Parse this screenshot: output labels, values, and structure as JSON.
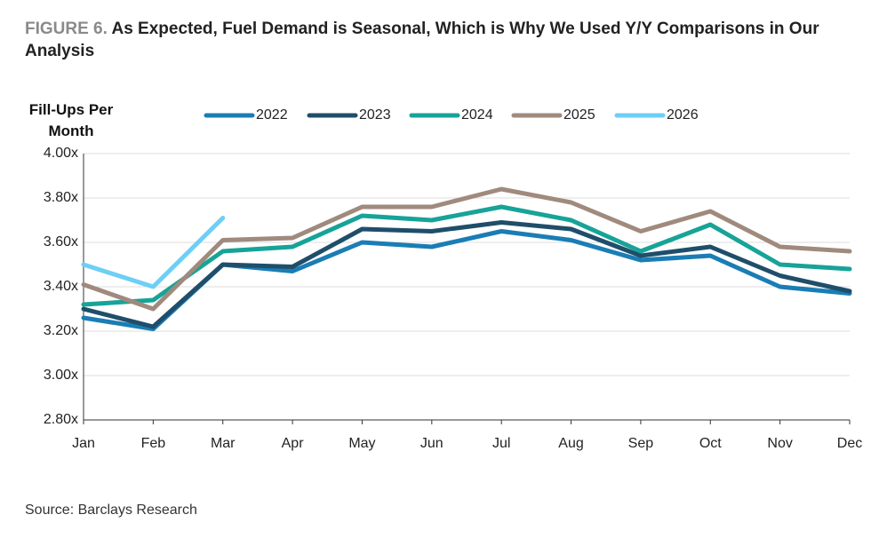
{
  "chart_data": {
    "type": "line",
    "figure_label": "FIGURE 6.",
    "title": "As Expected, Fuel Demand is Seasonal, Which is Why We Used Y/Y Comparisons in Our Analysis",
    "y_label": "Fill-Ups Per Month",
    "source": "Source: Barclays Research",
    "categories": [
      "Jan",
      "Feb",
      "Mar",
      "Apr",
      "May",
      "Jun",
      "Jul",
      "Aug",
      "Sep",
      "Oct",
      "Nov",
      "Dec"
    ],
    "series": [
      {
        "name": "2022",
        "color": "#1a7db5",
        "values": [
          3.26,
          3.21,
          3.5,
          3.47,
          3.6,
          3.58,
          3.65,
          3.61,
          3.52,
          3.54,
          3.4,
          3.37
        ]
      },
      {
        "name": "2023",
        "color": "#1f4e6b",
        "values": [
          3.3,
          3.22,
          3.5,
          3.49,
          3.66,
          3.65,
          3.69,
          3.66,
          3.54,
          3.58,
          3.45,
          3.38
        ]
      },
      {
        "name": "2024",
        "color": "#17a398",
        "values": [
          3.32,
          3.34,
          3.56,
          3.58,
          3.72,
          3.7,
          3.76,
          3.7,
          3.56,
          3.68,
          3.5,
          3.48
        ]
      },
      {
        "name": "2025",
        "color": "#a08a7e",
        "values": [
          3.41,
          3.3,
          3.61,
          3.62,
          3.76,
          3.76,
          3.84,
          3.78,
          3.65,
          3.74,
          3.58,
          3.56
        ]
      },
      {
        "name": "2026",
        "color": "#6dcff6",
        "values": [
          3.5,
          3.4,
          3.71,
          null,
          null,
          null,
          null,
          null,
          null,
          null,
          null,
          null
        ]
      }
    ],
    "ylim": [
      2.8,
      4.0
    ],
    "yticks": [
      {
        "value": 2.8,
        "label": "2.80x"
      },
      {
        "value": 3.0,
        "label": "3.00x"
      },
      {
        "value": 3.2,
        "label": "3.20x"
      },
      {
        "value": 3.4,
        "label": "3.40x"
      },
      {
        "value": 3.6,
        "label": "3.60x"
      },
      {
        "value": 3.8,
        "label": "3.80x"
      },
      {
        "value": 4.0,
        "label": "4.00x"
      }
    ],
    "grid": true,
    "legend": "top"
  }
}
